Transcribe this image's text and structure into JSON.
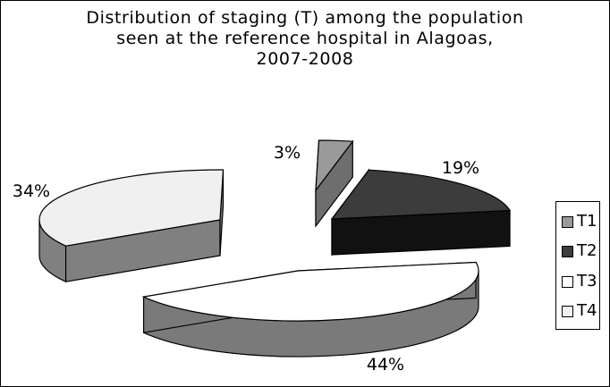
{
  "title_lines": [
    "Distribution of staging (T) among the population",
    "seen at the reference hospital in Alagoas,",
    "2007-2008"
  ],
  "chart_data": {
    "type": "pie",
    "title": "Distribution of staging (T) among the population seen at the reference hospital in Alagoas, 2007-2008",
    "three_d": true,
    "categories": [
      "T1",
      "T2",
      "T3",
      "T4"
    ],
    "values": [
      3,
      19,
      44,
      34
    ],
    "labels": [
      "3%",
      "19%",
      "44%",
      "34%"
    ],
    "colors": [
      "#9a9a9a",
      "#3c3c3c",
      "#ffffff",
      "#f0f0f0"
    ],
    "legend_position": "right"
  }
}
